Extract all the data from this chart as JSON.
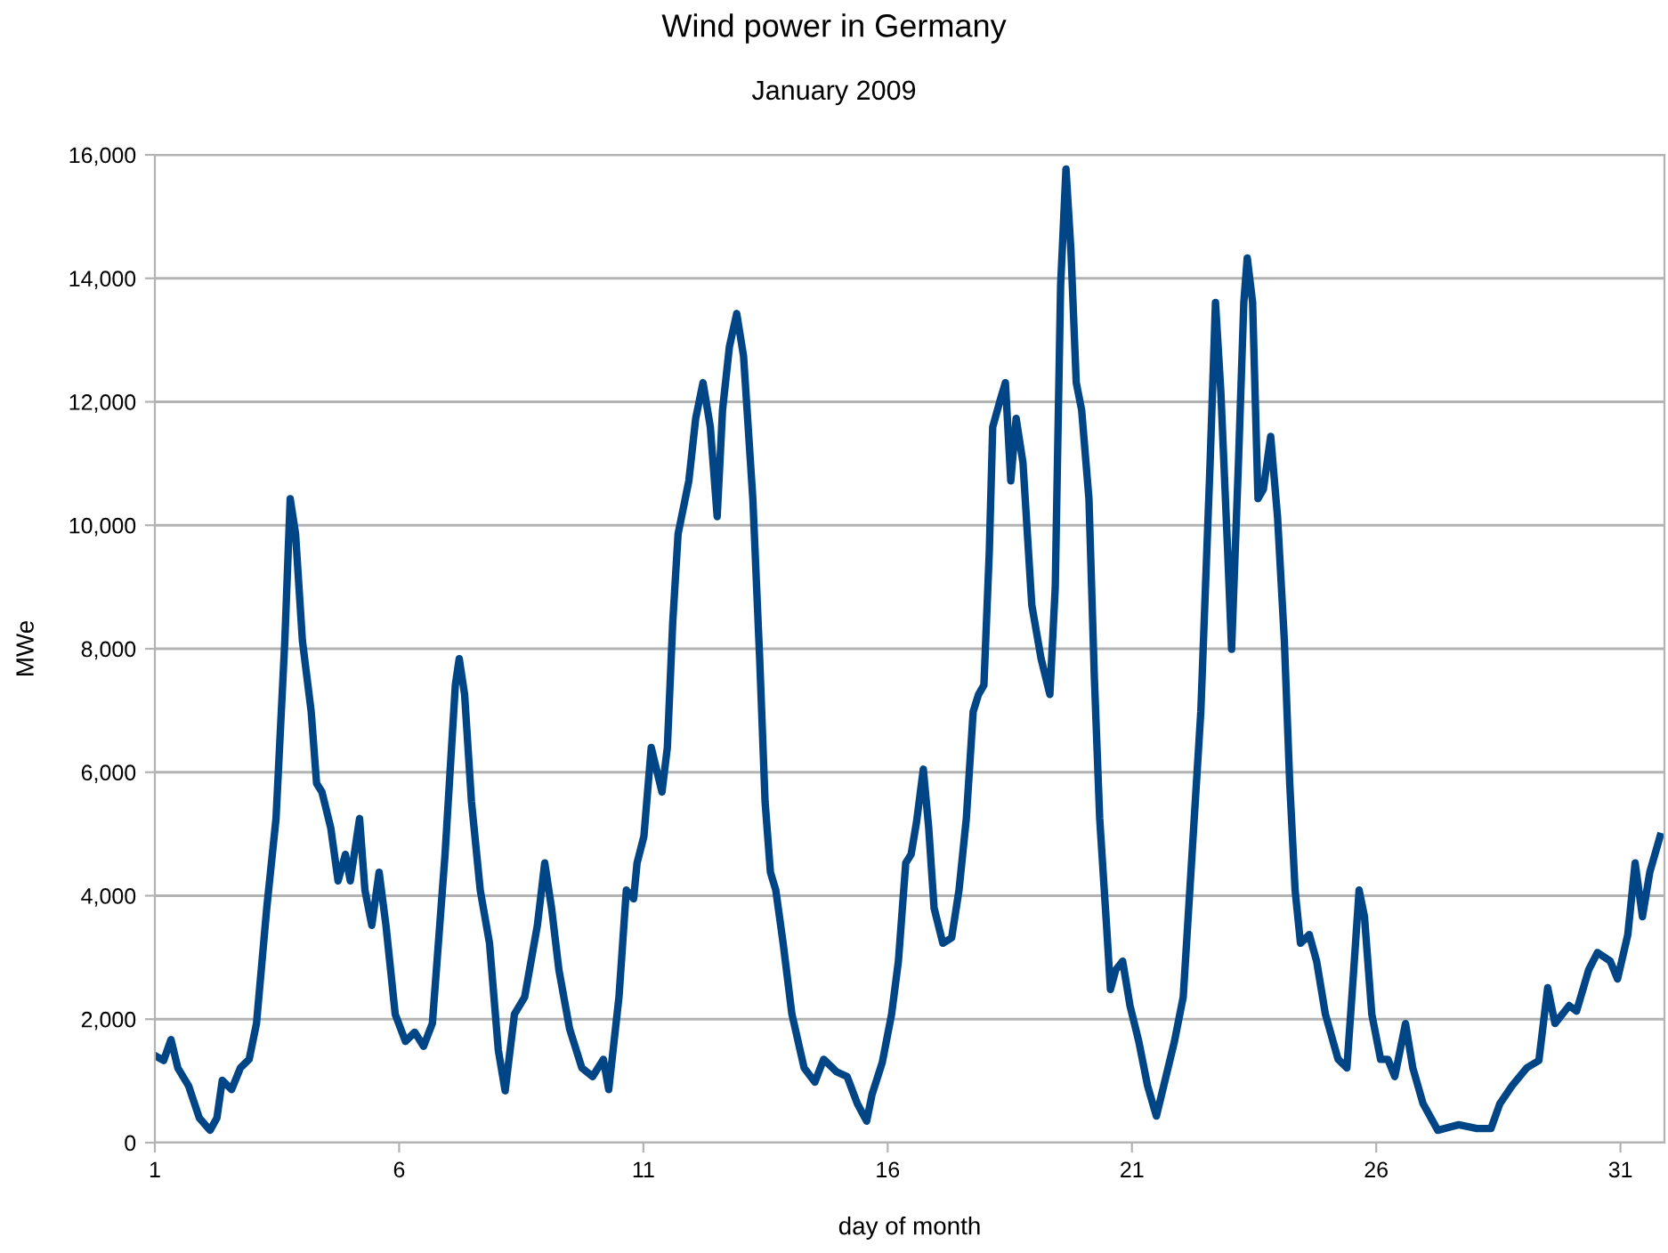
{
  "chart_data": {
    "type": "line",
    "title": "Wind power in Germany",
    "subtitle": "January 2009",
    "xlabel": "day of month",
    "ylabel": "MWe",
    "xlim": [
      1,
      31.9
    ],
    "xticks": [
      1,
      6,
      11,
      16,
      21,
      26,
      31
    ],
    "ylim": [
      0,
      16000
    ],
    "yticks": [
      {
        "value": 0,
        "label": "0"
      },
      {
        "value": 2000,
        "label": "2,000"
      },
      {
        "value": 4000,
        "label": "4,000"
      },
      {
        "value": 6000,
        "label": "6,000"
      },
      {
        "value": 8000,
        "label": "8,000"
      },
      {
        "value": 10000,
        "label": "10,000"
      },
      {
        "value": 12000,
        "label": "12,000"
      },
      {
        "value": 14000,
        "label": "14,000"
      },
      {
        "value": 16000,
        "label": "16,000"
      }
    ],
    "grid": "y",
    "legend": false,
    "marker": "none",
    "line_style": "solid",
    "series": [
      {
        "color": "#004586",
        "x": [
          1.0,
          1.18,
          1.33,
          1.47,
          1.69,
          1.91,
          2.13,
          2.27,
          2.38,
          2.57,
          2.75,
          2.93,
          3.08,
          3.29,
          3.48,
          3.66,
          3.77,
          3.88,
          4.02,
          4.2,
          4.31,
          4.42,
          4.6,
          4.75,
          4.9,
          5.0,
          5.19,
          5.3,
          5.44,
          5.59,
          5.73,
          5.92,
          6.13,
          6.32,
          6.5,
          6.68,
          6.94,
          7.15,
          7.23,
          7.34,
          7.48,
          7.66,
          7.85,
          8.03,
          8.17,
          8.36,
          8.57,
          8.83,
          8.98,
          9.12,
          9.27,
          9.49,
          9.74,
          9.96,
          10.18,
          10.29,
          10.5,
          10.65,
          10.8,
          10.87,
          11.01,
          11.16,
          11.38,
          11.49,
          11.6,
          11.71,
          11.93,
          12.07,
          12.22,
          12.37,
          12.51,
          12.62,
          12.76,
          12.91,
          13.05,
          13.24,
          13.38,
          13.49,
          13.6,
          13.71,
          13.86,
          14.04,
          14.29,
          14.51,
          14.69,
          14.95,
          15.17,
          15.38,
          15.57,
          15.68,
          15.89,
          16.08,
          16.22,
          16.37,
          16.48,
          16.59,
          16.73,
          16.84,
          16.95,
          17.13,
          17.31,
          17.46,
          17.61,
          17.75,
          17.86,
          17.97,
          18.08,
          18.15,
          18.3,
          18.41,
          18.52,
          18.63,
          18.77,
          18.95,
          19.14,
          19.32,
          19.43,
          19.54,
          19.65,
          19.75,
          19.86,
          19.97,
          20.12,
          20.23,
          20.34,
          20.48,
          20.56,
          20.67,
          20.81,
          20.96,
          21.14,
          21.32,
          21.5,
          21.65,
          21.87,
          22.05,
          22.23,
          22.41,
          22.6,
          22.71,
          22.82,
          22.96,
          23.04,
          23.18,
          23.29,
          23.36,
          23.47,
          23.58,
          23.69,
          23.84,
          23.98,
          24.12,
          24.23,
          24.34,
          24.45,
          24.63,
          24.78,
          24.96,
          25.22,
          25.4,
          25.54,
          25.65,
          25.76,
          25.91,
          26.09,
          26.24,
          26.38,
          26.6,
          26.75,
          26.96,
          27.26,
          27.69,
          28.06,
          28.35,
          28.53,
          28.78,
          29.08,
          29.33,
          29.51,
          29.66,
          29.95,
          30.1,
          30.35,
          30.53,
          30.79,
          30.94,
          31.15,
          31.3,
          31.45,
          31.6,
          31.81
        ],
        "values": [
          1410,
          1330,
          1670,
          1210,
          920,
          400,
          200,
          400,
          1010,
          860,
          1210,
          1350,
          1930,
          3800,
          5250,
          8130,
          10430,
          9860,
          8130,
          6980,
          5820,
          5680,
          5100,
          4240,
          4670,
          4240,
          5250,
          4090,
          3520,
          4380,
          3520,
          2080,
          1640,
          1790,
          1560,
          1930,
          4670,
          7410,
          7840,
          7260,
          5530,
          4090,
          3230,
          1500,
          840,
          2080,
          2360,
          3520,
          4530,
          3800,
          2800,
          1840,
          1210,
          1070,
          1350,
          860,
          2360,
          4090,
          3950,
          4530,
          4960,
          6400,
          5680,
          6400,
          8420,
          9860,
          10720,
          11730,
          12310,
          11590,
          10140,
          11870,
          12890,
          13430,
          12740,
          10430,
          7840,
          5530,
          4380,
          4090,
          3230,
          2080,
          1210,
          980,
          1350,
          1150,
          1070,
          630,
          350,
          780,
          1300,
          2080,
          2940,
          4530,
          4670,
          5190,
          6050,
          5100,
          3800,
          3230,
          3320,
          4090,
          5250,
          6980,
          7260,
          7410,
          9570,
          11590,
          12020,
          12310,
          10720,
          11730,
          11010,
          8710,
          7840,
          7260,
          8990,
          13890,
          15770,
          14470,
          12310,
          11870,
          10430,
          7550,
          5250,
          3520,
          2480,
          2800,
          2940,
          2220,
          1640,
          920,
          430,
          920,
          1640,
          2360,
          4670,
          6980,
          11010,
          13610,
          12160,
          9570,
          7990,
          11010,
          13610,
          14330,
          13610,
          10430,
          10580,
          11440,
          10140,
          8130,
          5820,
          4090,
          3230,
          3370,
          2940,
          2080,
          1350,
          1210,
          2800,
          4090,
          3660,
          2080,
          1350,
          1350,
          1070,
          1930,
          1210,
          630,
          200,
          290,
          230,
          230,
          630,
          920,
          1210,
          1330,
          2510,
          1930,
          2220,
          2130,
          2800,
          3080,
          2940,
          2650,
          3370,
          4530,
          3660,
          4380,
          4960
        ]
      }
    ]
  }
}
